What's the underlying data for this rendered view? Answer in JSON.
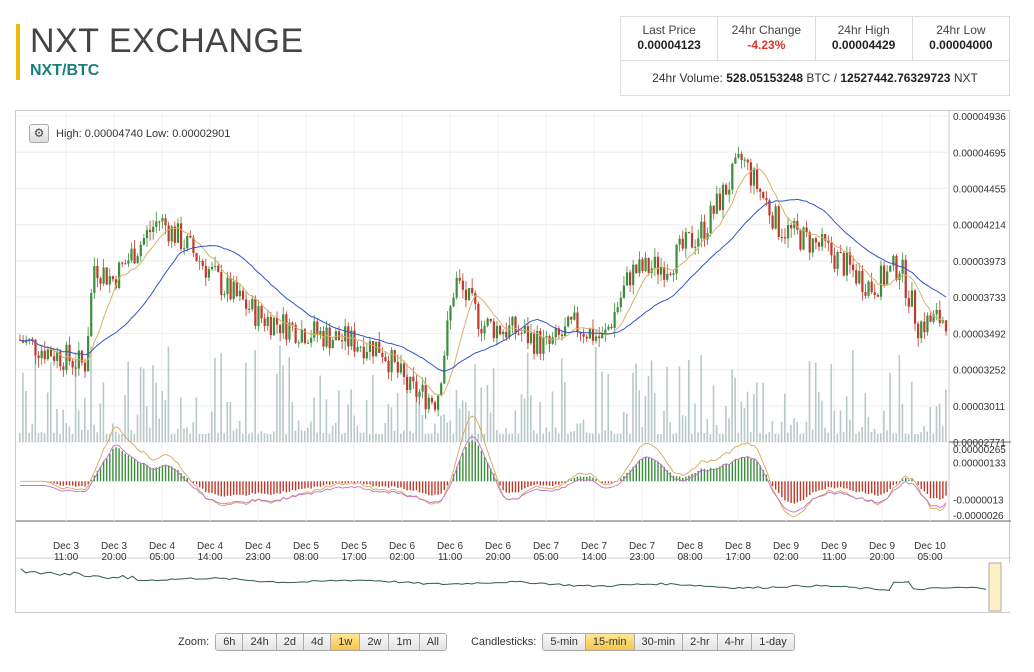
{
  "header": {
    "title": "NXT EXCHANGE",
    "pair": "NXT/BTC"
  },
  "stats": [
    {
      "label": "Last Price",
      "value": "0.00004123",
      "neg": false
    },
    {
      "label": "24hr Change",
      "value": "-4.23%",
      "neg": true
    },
    {
      "label": "24hr High",
      "value": "0.00004429",
      "neg": false
    },
    {
      "label": "24hr Low",
      "value": "0.00004000",
      "neg": false
    }
  ],
  "volume": {
    "label": "24hr Volume:",
    "btc": "528.05153248",
    "btc_unit": "BTC /",
    "nxt": "12527442.76329723",
    "nxt_unit": "NXT"
  },
  "chart_header": {
    "gear_icon": "gear-icon",
    "high_low": "High: 0.00004740  Low: 0.00002901"
  },
  "controls": {
    "zoom_label": "Zoom:",
    "zoom": [
      "6h",
      "24h",
      "2d",
      "4d",
      "1w",
      "2w",
      "1m",
      "All"
    ],
    "zoom_active": "1w",
    "candle_label": "Candlesticks:",
    "candles": [
      "5-min",
      "15-min",
      "30-min",
      "2-hr",
      "4-hr",
      "1-day"
    ],
    "candle_active": "15-min"
  },
  "chart_data": [
    {
      "type": "candlestick",
      "ylim": [
        2.771e-05,
        4.936e-05
      ],
      "y_ticks": [
        "0.00004936",
        "0.00004695",
        "0.00004455",
        "0.00004214",
        "0.00003973",
        "0.00003733",
        "0.00003492",
        "0.00003252",
        "0.00003011",
        "0.00002771"
      ],
      "x_ticks": [
        [
          "Dec 3",
          "11:00"
        ],
        [
          "Dec 3",
          "20:00"
        ],
        [
          "Dec 4",
          "05:00"
        ],
        [
          "Dec 4",
          "14:00"
        ],
        [
          "Dec 4",
          "23:00"
        ],
        [
          "Dec 5",
          "08:00"
        ],
        [
          "Dec 5",
          "17:00"
        ],
        [
          "Dec 6",
          "02:00"
        ],
        [
          "Dec 6",
          "11:00"
        ],
        [
          "Dec 6",
          "20:00"
        ],
        [
          "Dec 7",
          "05:00"
        ],
        [
          "Dec 7",
          "14:00"
        ],
        [
          "Dec 7",
          "23:00"
        ],
        [
          "Dec 8",
          "08:00"
        ],
        [
          "Dec 8",
          "17:00"
        ],
        [
          "Dec 9",
          "02:00"
        ],
        [
          "Dec 9",
          "11:00"
        ],
        [
          "Dec 9",
          "20:00"
        ],
        [
          "Dec 10",
          "05:00"
        ]
      ],
      "price_keypoints": [
        [
          0,
          3.45e-05
        ],
        [
          0.07,
          3.28e-05
        ],
        [
          0.08,
          3.95e-05
        ],
        [
          0.1,
          3.85e-05
        ],
        [
          0.15,
          4.25e-05
        ],
        [
          0.18,
          4.08e-05
        ],
        [
          0.22,
          3.8e-05
        ],
        [
          0.26,
          3.6e-05
        ],
        [
          0.3,
          3.52e-05
        ],
        [
          0.35,
          3.45e-05
        ],
        [
          0.39,
          3.4e-05
        ],
        [
          0.42,
          3.12e-05
        ],
        [
          0.45,
          3.05e-05
        ],
        [
          0.47,
          3.85e-05
        ],
        [
          0.5,
          3.55e-05
        ],
        [
          0.54,
          3.5e-05
        ],
        [
          0.57,
          3.4e-05
        ],
        [
          0.6,
          3.55e-05
        ],
        [
          0.63,
          3.45e-05
        ],
        [
          0.66,
          3.9e-05
        ],
        [
          0.7,
          3.95e-05
        ],
        [
          0.74,
          4.2e-05
        ],
        [
          0.78,
          4.65e-05
        ],
        [
          0.82,
          4.2e-05
        ],
        [
          0.87,
          4.05e-05
        ],
        [
          0.92,
          3.8e-05
        ],
        [
          0.95,
          3.95e-05
        ],
        [
          0.97,
          3.55e-05
        ],
        [
          1.0,
          3.6e-05
        ]
      ],
      "macd_ylim": [
        -2.68e-06,
        2.65e-06
      ],
      "macd_ticks": [
        "0.00000265",
        "0.00000133",
        "-0.0000013",
        "-0.0000026"
      ]
    }
  ]
}
